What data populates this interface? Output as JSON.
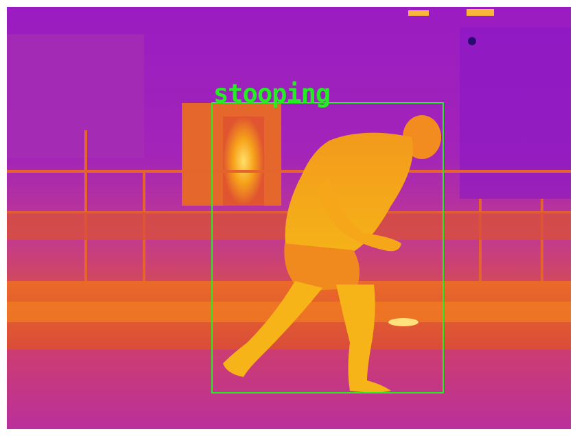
{
  "detection": {
    "label": "stooping",
    "box_color": "#22ee22",
    "label_color": "#22ee22"
  },
  "palette": {
    "cold": "#8e1cc0",
    "mid": "#c7368f",
    "warm": "#f0702a",
    "hot": "#f7b012",
    "hottest": "#ffe07a"
  }
}
